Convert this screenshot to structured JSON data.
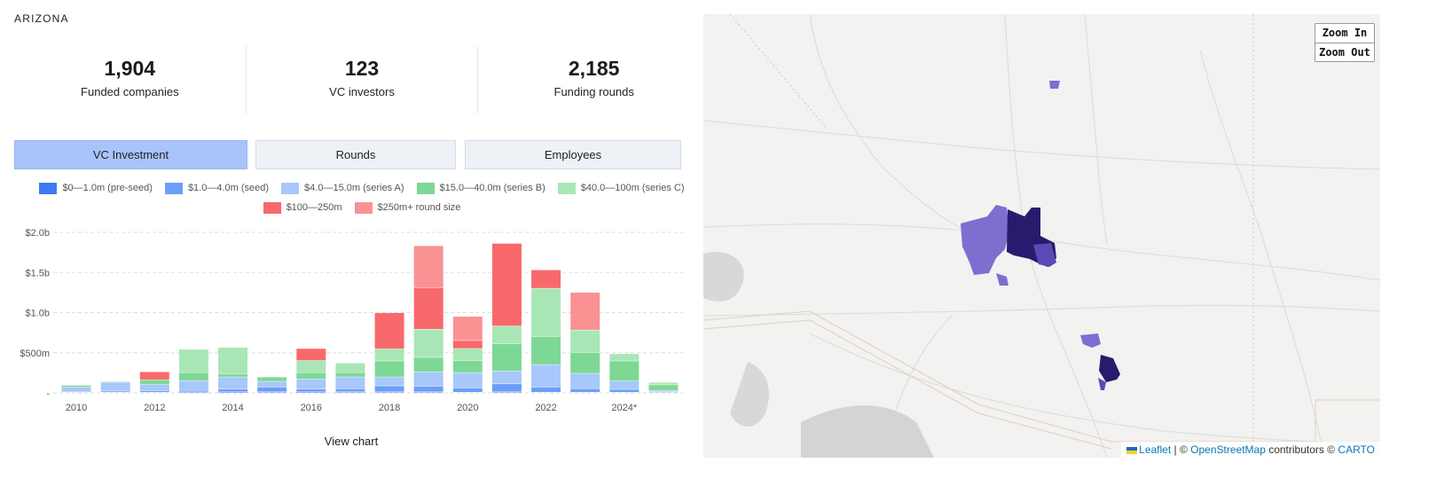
{
  "region": "ARIZONA",
  "stats": [
    {
      "value": "1,904",
      "label": "Funded companies"
    },
    {
      "value": "123",
      "label": "VC investors"
    },
    {
      "value": "2,185",
      "label": "Funding rounds"
    }
  ],
  "tabs": [
    "VC Investment",
    "Rounds",
    "Employees"
  ],
  "active_tab": 0,
  "view_chart_label": "View chart",
  "map": {
    "zoom_in": "Zoom In",
    "zoom_out": "Zoom Out",
    "attribution": {
      "leaflet": "Leaflet",
      "separator": " | © ",
      "osm": "OpenStreetMap",
      "contributors": " contributors © ",
      "carto": "CARTO"
    }
  },
  "chart_data": {
    "type": "bar",
    "stacked": true,
    "x": [
      "2010",
      "2011",
      "2012",
      "2013",
      "2014",
      "2015",
      "2016",
      "2017",
      "2018",
      "2019",
      "2020",
      "2021",
      "2022",
      "2023",
      "2024*",
      "2025"
    ],
    "x_tick_labels": [
      "2010",
      "2012",
      "2014",
      "2016",
      "2018",
      "2020",
      "2022",
      "2024*"
    ],
    "y_ticks": [
      "-",
      "$500m",
      "$1.0b",
      "$1.5b",
      "$2.0b"
    ],
    "ylim": [
      0,
      2000
    ],
    "y_unit": "$m",
    "grid": true,
    "legend_position": "top",
    "series": [
      {
        "name": "$0—1.0m (pre-seed)",
        "color": "#3f7af3",
        "values": [
          5,
          5,
          5,
          10,
          15,
          10,
          15,
          10,
          10,
          10,
          5,
          10,
          5,
          5,
          5,
          3
        ]
      },
      {
        "name": "$1.0—4.0m (seed)",
        "color": "#6c9ef8",
        "values": [
          10,
          15,
          20,
          20,
          30,
          60,
          30,
          40,
          75,
          70,
          55,
          100,
          65,
          45,
          35,
          10
        ]
      },
      {
        "name": "$4.0—15.0m (series A)",
        "color": "#a8c7fa",
        "values": [
          55,
          110,
          75,
          120,
          150,
          70,
          125,
          145,
          110,
          180,
          190,
          160,
          280,
          190,
          105,
          15
        ]
      },
      {
        "name": "$15.0—40.0m (series B)",
        "color": "#7dd896",
        "values": [
          20,
          10,
          60,
          100,
          40,
          55,
          80,
          55,
          200,
          180,
          150,
          340,
          350,
          260,
          250,
          70
        ]
      },
      {
        "name": "$40.0—100m (series C)",
        "color": "#a9e6b6",
        "values": [
          10,
          5,
          0,
          290,
          330,
          0,
          150,
          120,
          150,
          350,
          150,
          220,
          600,
          280,
          90,
          30
        ]
      },
      {
        "name": "$100—250m",
        "color": "#f8696b",
        "values": [
          0,
          0,
          100,
          0,
          0,
          0,
          150,
          0,
          450,
          520,
          100,
          1030,
          230,
          0,
          0,
          0
        ]
      },
      {
        "name": "$250m+ round size",
        "color": "#fa9294",
        "values": [
          0,
          0,
          0,
          0,
          0,
          0,
          0,
          0,
          0,
          520,
          300,
          0,
          0,
          470,
          0,
          0
        ]
      }
    ]
  }
}
